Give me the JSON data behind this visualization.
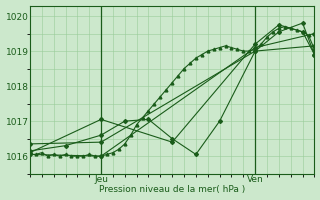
{
  "xlabel": "Pression niveau de la mer( hPa )",
  "ylim": [
    1015.5,
    1020.3
  ],
  "xlim": [
    0,
    48
  ],
  "yticks": [
    1016,
    1017,
    1018,
    1019,
    1020
  ],
  "xtick_positions": [
    12,
    38
  ],
  "xtick_labels": [
    "Jeu",
    "Ven"
  ],
  "vlines": [
    12,
    38
  ],
  "bg_color": "#cce8cc",
  "line_color": "#1a5c1a",
  "grid_color": "#99cc99",
  "series": [
    {
      "x": [
        0,
        1,
        2,
        3,
        4,
        5,
        6,
        7,
        8,
        9,
        10,
        11,
        12,
        13,
        14,
        15,
        16,
        17,
        18,
        19,
        20,
        21,
        22,
        23,
        24,
        25,
        26,
        27,
        28,
        29,
        30,
        31,
        32,
        33,
        34,
        35,
        36,
        37,
        38,
        39,
        40,
        41,
        42,
        43,
        44,
        45,
        46,
        47,
        48
      ],
      "y": [
        1016.05,
        1016.05,
        1016.1,
        1016.0,
        1016.05,
        1016.0,
        1016.05,
        1016.0,
        1016.0,
        1016.0,
        1016.05,
        1016.0,
        1016.0,
        1016.05,
        1016.1,
        1016.2,
        1016.35,
        1016.6,
        1016.9,
        1017.1,
        1017.3,
        1017.5,
        1017.7,
        1017.9,
        1018.1,
        1018.3,
        1018.5,
        1018.65,
        1018.8,
        1018.9,
        1019.0,
        1019.05,
        1019.1,
        1019.15,
        1019.1,
        1019.05,
        1019.0,
        1019.0,
        1019.05,
        1019.2,
        1019.4,
        1019.55,
        1019.65,
        1019.7,
        1019.65,
        1019.6,
        1019.55,
        1019.45,
        1019.05
      ]
    },
    {
      "x": [
        0,
        12,
        38,
        48
      ],
      "y": [
        1016.35,
        1016.4,
        1019.0,
        1019.15
      ]
    },
    {
      "x": [
        0,
        12,
        38,
        48
      ],
      "y": [
        1016.05,
        1016.0,
        1019.1,
        1019.5
      ]
    },
    {
      "x": [
        0,
        6,
        12,
        16,
        20,
        24,
        28,
        32,
        38,
        42,
        46,
        48
      ],
      "y": [
        1016.15,
        1016.3,
        1016.6,
        1017.0,
        1017.05,
        1016.5,
        1016.05,
        1017.0,
        1019.0,
        1019.55,
        1019.8,
        1018.9
      ]
    },
    {
      "x": [
        0,
        12,
        24,
        38,
        42,
        46,
        48
      ],
      "y": [
        1016.1,
        1017.05,
        1016.4,
        1019.2,
        1019.75,
        1019.55,
        1018.9
      ]
    }
  ]
}
